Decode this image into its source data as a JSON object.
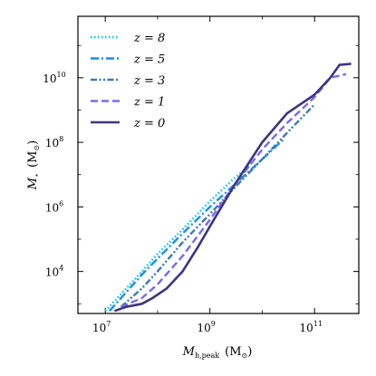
{
  "chart_data": {
    "type": "line",
    "title": "",
    "xlabel": "M_h,peak (M_⊙)",
    "ylabel": "M_⋆ (M_⊙)",
    "xscale": "log",
    "yscale": "log",
    "xlim": [
      3000000.0,
      700000000000.0
    ],
    "ylim": [
      500.0,
      800000000000.0
    ],
    "grid": false,
    "legend_position": "top-left",
    "x_ticks": [
      {
        "base": "10",
        "exp": "7",
        "value": 10000000.0
      },
      {
        "base": "10",
        "exp": "9",
        "value": 1000000000.0
      },
      {
        "base": "10",
        "exp": "11",
        "value": 100000000000.0
      }
    ],
    "y_ticks": [
      {
        "base": "10",
        "exp": "4",
        "value": 10000.0
      },
      {
        "base": "10",
        "exp": "6",
        "value": 1000000.0
      },
      {
        "base": "10",
        "exp": "8",
        "value": 100000000.0
      },
      {
        "base": "10",
        "exp": "10",
        "value": 10000000000.0
      }
    ],
    "x_label_parts": {
      "main": "M",
      "sub": "h,peak",
      "unit_open": "(M",
      "unit_sub": "⊙",
      "unit_close": ")"
    },
    "y_label_parts": {
      "main": "M",
      "sub": "⋆",
      "unit_open": "(M",
      "unit_sub": "⊙",
      "unit_close": ")"
    },
    "series": [
      {
        "name": "z = 8",
        "color": "#00c8e6",
        "dash": "dotted",
        "x": [
          10000000.0,
          20000000.0,
          50000000.0,
          100000000.0,
          300000000.0,
          1000000000.0,
          3000000000.0,
          6000000000.0
        ],
        "y": [
          600.0,
          2000.0,
          10000.0,
          35000.0,
          200000.0,
          1500000.0,
          8000000.0,
          20000000.0
        ]
      },
      {
        "name": "z = 5",
        "color": "#1e8ce6",
        "dash": "dashdot",
        "x": [
          12000000.0,
          20000000.0,
          50000000.0,
          100000000.0,
          300000000.0,
          1000000000.0,
          3000000000.0,
          10000000000.0,
          25000000000.0
        ],
        "y": [
          600.0,
          1500.0,
          8000.0,
          25000.0,
          150000.0,
          1000000.0,
          5000000.0,
          30000000.0,
          120000000.0
        ]
      },
      {
        "name": "z = 3",
        "color": "#3c7ab4",
        "dash": "dashdotdot",
        "x": [
          20000000.0,
          50000000.0,
          100000000.0,
          300000000.0,
          1000000000.0,
          3000000000.0,
          10000000000.0,
          30000000000.0,
          100000000000.0
        ],
        "y": [
          800.0,
          3000.0,
          10000.0,
          80000.0,
          600000.0,
          4000000.0,
          30000000.0,
          200000000.0,
          1500000000.0
        ]
      },
      {
        "name": "z = 1",
        "color": "#7b68ee",
        "dash": "dashed",
        "x": [
          20000000.0,
          50000000.0,
          100000000.0,
          300000000.0,
          1000000000.0,
          3000000000.0,
          10000000000.0,
          30000000000.0,
          100000000000.0,
          200000000000.0,
          400000000000.0
        ],
        "y": [
          800.0,
          1500.0,
          4000.0,
          30000.0,
          400000.0,
          5000000.0,
          60000000.0,
          400000000.0,
          2500000000.0,
          10000000000.0,
          13000000000.0
        ]
      },
      {
        "name": "z = 0",
        "color": "#3d3580",
        "dash": "solid",
        "x": [
          15000000.0,
          25000000.0,
          50000000.0,
          80000000.0,
          150000000.0,
          300000000.0,
          600000000.0,
          1000000000.0,
          3000000000.0,
          10000000000.0,
          30000000000.0,
          100000000000.0,
          200000000000.0,
          300000000000.0,
          500000000000.0
        ],
        "y": [
          600.0,
          800.0,
          1000.0,
          1500.0,
          3000.0,
          10000.0,
          60000.0,
          250000.0,
          5000000.0,
          100000000.0,
          800000000.0,
          3000000000.0,
          10000000000.0,
          25000000000.0,
          27000000000.0
        ]
      }
    ]
  }
}
